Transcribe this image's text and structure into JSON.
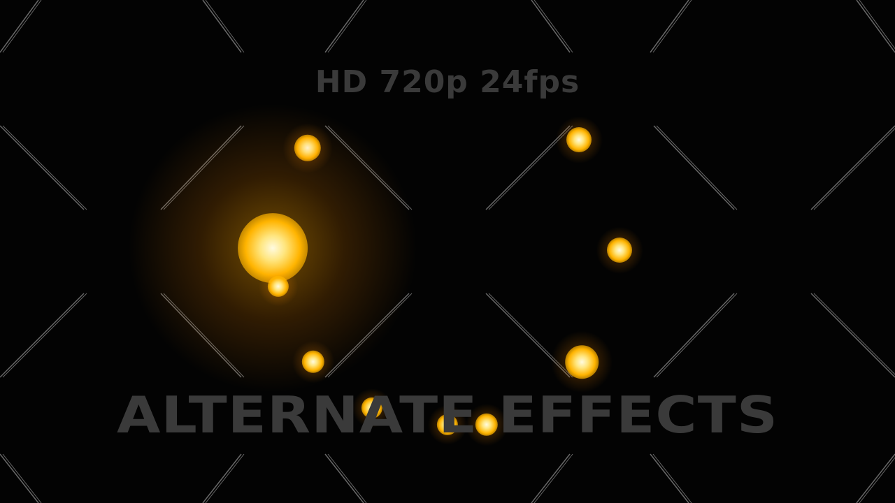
{
  "overlay": {
    "format_label": "HD 720p 24fps",
    "title": "ALTERNATE EFFECTS"
  },
  "colors": {
    "background": "#030303",
    "orb_core": "#fffbe0",
    "orb_glow": "#ffb400",
    "watermark_line": "#8a8a8a",
    "text": "#3a3a3a"
  },
  "orbs": [
    {
      "name": "orb-top-left",
      "intensity": 1.0
    },
    {
      "name": "orb-top-right",
      "intensity": 1.0
    },
    {
      "name": "orb-left-large",
      "intensity": 1.6
    },
    {
      "name": "orb-left-small",
      "intensity": 0.9
    },
    {
      "name": "orb-right-middle",
      "intensity": 1.0
    },
    {
      "name": "orb-bottom-left",
      "intensity": 0.9
    },
    {
      "name": "orb-bottom-right",
      "intensity": 1.1
    },
    {
      "name": "orb-bottom-center-1",
      "intensity": 0.9
    },
    {
      "name": "orb-bottom-center-2",
      "intensity": 0.9
    },
    {
      "name": "orb-bottom-center-3",
      "intensity": 0.9
    }
  ]
}
